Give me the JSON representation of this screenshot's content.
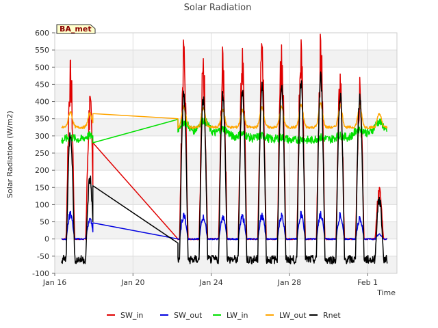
{
  "chart_data": {
    "type": "line",
    "title": "Solar Radiation",
    "xlabel": "Time",
    "ylabel": "Solar Radiation (W/m2)",
    "site_badge": "BA_met",
    "ylim": [
      -100,
      600
    ],
    "yticks": [
      -100,
      -50,
      0,
      50,
      100,
      150,
      200,
      250,
      300,
      350,
      400,
      450,
      500,
      550,
      600
    ],
    "xlim": [
      16.0,
      33.5
    ],
    "xticks": [
      {
        "value": 16,
        "label": "Jan 16"
      },
      {
        "value": 20,
        "label": "Jan 20"
      },
      {
        "value": 24,
        "label": "Jan 24"
      },
      {
        "value": 28,
        "label": "Jan 28"
      },
      {
        "value": 32,
        "label": "Feb 1"
      }
    ],
    "x_unit": "day of January (fractional)",
    "grid": true,
    "legend_position": "bottom",
    "series": [
      {
        "name": "SW_in",
        "color": "#e00000"
      },
      {
        "name": "SW_out",
        "color": "#0000e0"
      },
      {
        "name": "LW_in",
        "color": "#00e000"
      },
      {
        "name": "LW_out",
        "color": "#ffa500"
      },
      {
        "name": "Rnet",
        "color": "#000000"
      }
    ],
    "day_peaks": [
      {
        "day": 16.8,
        "sw_in": 520,
        "sw_out": 80,
        "lw_in": 295,
        "lw_out": 370,
        "rnet": 310
      },
      {
        "day": 17.8,
        "sw_in": 415,
        "sw_out": 60,
        "lw_in": 300,
        "lw_out": 365,
        "rnet": 175
      },
      {
        "day": 22.6,
        "sw_in": 560,
        "sw_out": 75,
        "lw_in": 340,
        "lw_out": 385,
        "rnet": 420
      },
      {
        "day": 23.6,
        "sw_in": 525,
        "sw_out": 70,
        "lw_in": 345,
        "lw_out": 380,
        "rnet": 410
      },
      {
        "day": 24.6,
        "sw_in": 540,
        "sw_out": 68,
        "lw_in": 320,
        "lw_out": 375,
        "rnet": 420
      },
      {
        "day": 25.6,
        "sw_in": 555,
        "sw_out": 70,
        "lw_in": 305,
        "lw_out": 375,
        "rnet": 435
      },
      {
        "day": 26.6,
        "sw_in": 560,
        "sw_out": 75,
        "lw_in": 300,
        "lw_out": 385,
        "rnet": 440
      },
      {
        "day": 27.6,
        "sw_in": 565,
        "sw_out": 75,
        "lw_in": 295,
        "lw_out": 385,
        "rnet": 450
      },
      {
        "day": 28.6,
        "sw_in": 580,
        "sw_out": 80,
        "lw_in": 290,
        "lw_out": 390,
        "rnet": 460
      },
      {
        "day": 29.6,
        "sw_in": 578,
        "sw_out": 80,
        "lw_in": 295,
        "lw_out": 395,
        "rnet": 470
      },
      {
        "day": 30.6,
        "sw_in": 480,
        "sw_out": 75,
        "lw_in": 300,
        "lw_out": 390,
        "rnet": 420
      },
      {
        "day": 31.6,
        "sw_in": 470,
        "sw_out": 65,
        "lw_in": 320,
        "lw_out": 385,
        "rnet": 415
      },
      {
        "day": 32.6,
        "sw_in": 150,
        "sw_out": 15,
        "lw_in": 340,
        "lw_out": 365,
        "rnet": 115
      }
    ],
    "gap_segment": {
      "from_day": 17.95,
      "to_day": 22.3,
      "sw_in": [
        280,
        0
      ],
      "sw_out": [
        47,
        0
      ],
      "lw_in": [
        280,
        348
      ],
      "lw_out": [
        365,
        350
      ],
      "rnet": [
        155,
        -12
      ]
    },
    "night_levels": {
      "sw_in": 0,
      "sw_out": 0,
      "lw_in": 280,
      "lw_out": 325,
      "rnet": -60
    },
    "data_start_day": 16.35,
    "data_end_day": 33.0
  }
}
